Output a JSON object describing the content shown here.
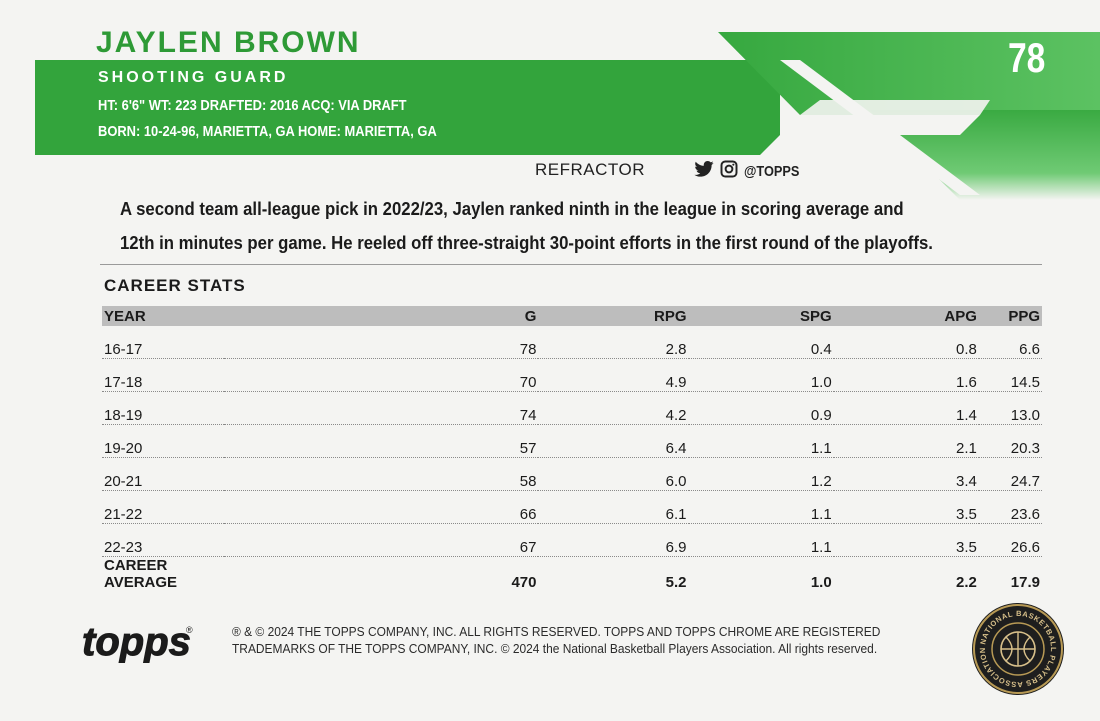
{
  "player": {
    "name": "JAYLEN BROWN",
    "position": "SHOOTING GUARD",
    "bio_line1": "HT: 6'6\"  WT: 223  DRAFTED: 2016  ACQ: VIA DRAFT",
    "bio_line2": "BORN: 10-24-96, MARIETTA, GA  HOME: MARIETTA, GA"
  },
  "card_number": "78",
  "parallel": "REFRACTOR",
  "social": {
    "handle": "@TOPPS",
    "icons": [
      "twitter-icon",
      "instagram-icon"
    ]
  },
  "blurb": {
    "line1": "A second team all-league pick in 2022/23, Jaylen ranked ninth in the league in scoring average and",
    "line2": "12th in minutes per game. He reeled off three-straight 30-point efforts in the first round of the playoffs."
  },
  "stats": {
    "title": "CAREER STATS",
    "columns": [
      "YEAR",
      "G",
      "RPG",
      "SPG",
      "APG",
      "PPG"
    ],
    "rows": [
      [
        "16-17",
        "78",
        "2.8",
        "0.4",
        "0.8",
        "6.6"
      ],
      [
        "17-18",
        "70",
        "4.9",
        "1.0",
        "1.6",
        "14.5"
      ],
      [
        "18-19",
        "74",
        "4.2",
        "0.9",
        "1.4",
        "13.0"
      ],
      [
        "19-20",
        "57",
        "6.4",
        "1.1",
        "2.1",
        "20.3"
      ],
      [
        "20-21",
        "58",
        "6.0",
        "1.2",
        "3.4",
        "24.7"
      ],
      [
        "21-22",
        "66",
        "6.1",
        "1.1",
        "3.5",
        "23.6"
      ],
      [
        "22-23",
        "67",
        "6.9",
        "1.1",
        "3.5",
        "26.6"
      ]
    ],
    "average": [
      "CAREER AVERAGE",
      "470",
      "5.2",
      "1.0",
      "2.2",
      "17.9"
    ]
  },
  "footer": {
    "logo_text": "topps",
    "legal_line1": "® & © 2024 THE TOPPS COMPANY, INC. ALL RIGHTS RESERVED. TOPPS AND TOPPS CHROME ARE REGISTERED",
    "legal_line2": "TRADEMARKS OF THE TOPPS COMPANY, INC. © 2024 the National Basketball Players Association. All rights reserved.",
    "seal_text": "NATIONAL BASKETBALL PLAYERS ASSOCIATION"
  },
  "colors": {
    "team_green": "#2e9a36",
    "band_green": "#33a43c",
    "header_gray": "#bdbdbd",
    "background": "#f4f4f2"
  }
}
